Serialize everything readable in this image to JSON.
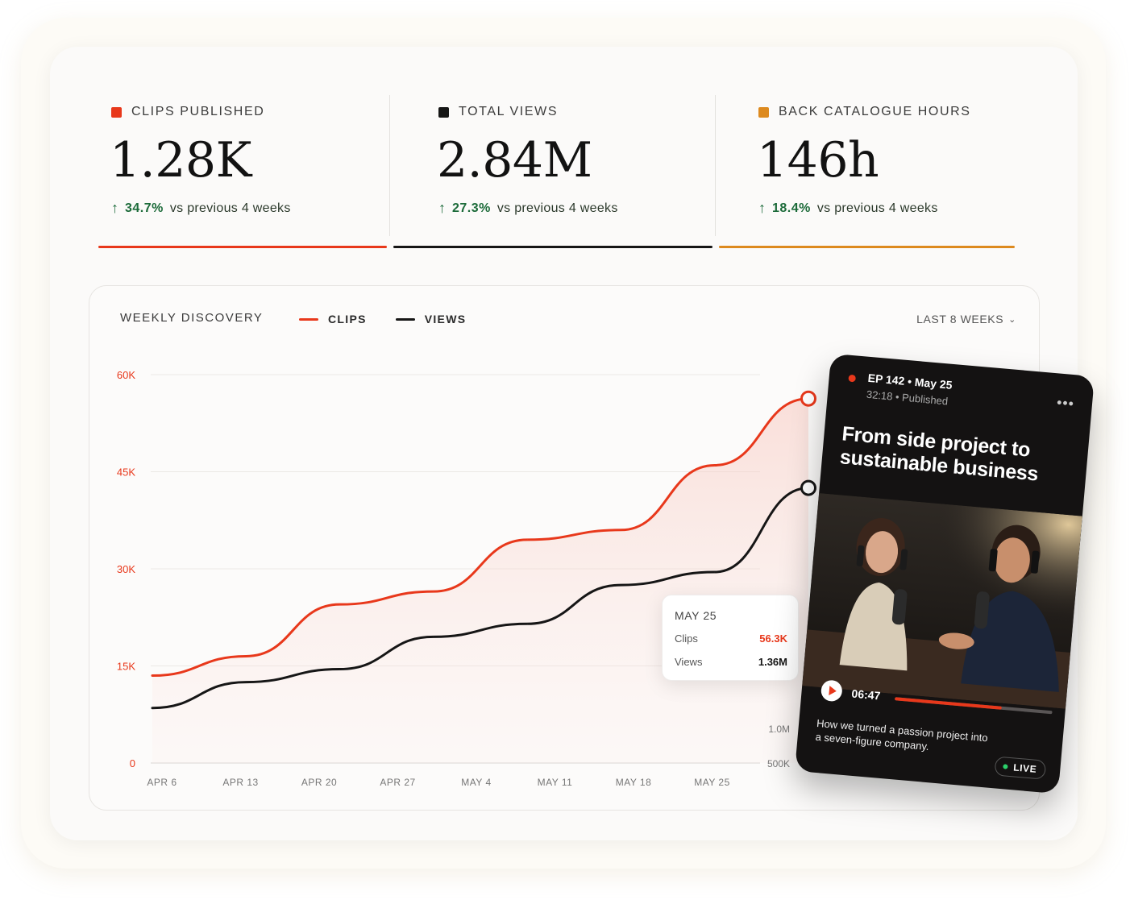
{
  "kpis": [
    {
      "label": "CLIPS PUBLISHED",
      "value": "1.28K",
      "delta_pct": "34.7%",
      "delta_text": "vs previous 4 weeks",
      "color": "#e8381b"
    },
    {
      "label": "TOTAL VIEWS",
      "value": "2.84M",
      "delta_pct": "27.3%",
      "delta_text": "vs previous 4 weeks",
      "color": "#161616"
    },
    {
      "label": "BACK CATALOGUE HOURS",
      "value": "146h",
      "delta_pct": "18.4%",
      "delta_text": "vs previous 4 weeks",
      "color": "#dd8a1f"
    }
  ],
  "chart": {
    "title": "WEEKLY DISCOVERY",
    "legend": [
      {
        "label": "CLIPS",
        "color": "#e8381b"
      },
      {
        "label": "VIEWS",
        "color": "#161616"
      }
    ],
    "range_label": "LAST 8 WEEKS"
  },
  "chart_data": {
    "type": "line",
    "x": [
      "APR 6",
      "APR 13",
      "APR 20",
      "APR 27",
      "MAY 4",
      "MAY 11",
      "MAY 18",
      "MAY 25"
    ],
    "y_left_ticks": [
      "0",
      "15K",
      "30K",
      "45K",
      "60K"
    ],
    "y_right_ticks": [
      "500K",
      "1.0M",
      "1.5M"
    ],
    "ylim": [
      0,
      60000
    ],
    "series": [
      {
        "name": "CLIPS",
        "color": "#e8381b",
        "values": [
          13500,
          16500,
          24500,
          26500,
          34500,
          36000,
          46000,
          56300
        ]
      },
      {
        "name": "VIEWS",
        "color": "#161616",
        "values": [
          8500,
          12500,
          14500,
          19500,
          21500,
          27500,
          29500,
          42500
        ]
      }
    ],
    "grid": true
  },
  "tooltip": {
    "date": "MAY 25",
    "rows": [
      {
        "label": "Clips",
        "value": "56.3K",
        "color": "#e8381b"
      },
      {
        "label": "Views",
        "value": "1.36M",
        "color": "#161616"
      }
    ]
  },
  "episode": {
    "ep": "EP 142 • May 25",
    "meta": "32:18 • Published",
    "title": "From side project to sustainable business",
    "time": "06:47",
    "progress": 0.68,
    "description": "How we turned a passion project into a seven-figure company.",
    "live": "LIVE"
  }
}
